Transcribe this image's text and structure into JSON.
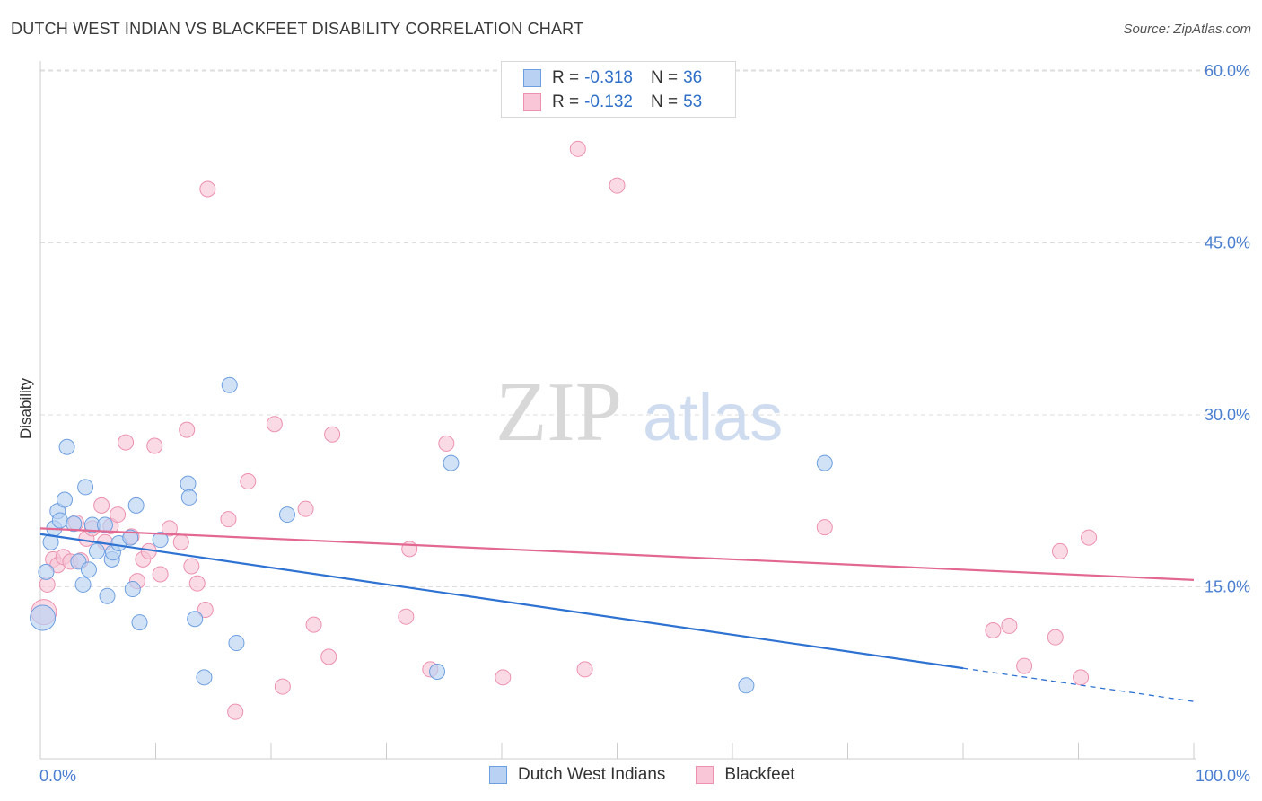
{
  "header": {
    "title": "DUTCH WEST INDIAN VS BLACKFEET DISABILITY CORRELATION CHART",
    "source": "Source: ZipAtlas.com"
  },
  "watermark": {
    "zip": "ZIP",
    "atlas": "atlas"
  },
  "legend": {
    "rows": [
      {
        "r_label": "R =",
        "r_value": "-0.318",
        "n_label": "N =",
        "n_value": "36"
      },
      {
        "r_label": "R =",
        "r_value": "-0.132",
        "n_label": "N =",
        "n_value": "53"
      }
    ]
  },
  "colors": {
    "blue_fill": "#b9d2f3",
    "blue_stroke": "#6d9fe0",
    "blue_line": "#2e72d2",
    "pink_fill": "#f8c6d6",
    "pink_stroke": "#ec91b0",
    "pink_line": "#e26891",
    "grid": "#dddddd",
    "tick_text": "#4a7fd0"
  },
  "chart_data": {
    "type": "scatter",
    "title": "DUTCH WEST INDIAN VS BLACKFEET DISABILITY CORRELATION CHART",
    "xlabel": "",
    "ylabel": "Disability",
    "xlim": [
      0,
      100
    ],
    "ylim": [
      0,
      61.5
    ],
    "x_tick_labels": [
      "0.0%",
      "100.0%"
    ],
    "y_ticks": [
      15,
      30,
      45,
      60
    ],
    "y_tick_labels": [
      "15.0%",
      "30.0%",
      "45.0%",
      "60.0%"
    ],
    "grid": true,
    "series": [
      {
        "name": "Dutch West Indians",
        "r": -0.318,
        "n": 36,
        "trend": {
          "x0": 0,
          "y0": 19.6,
          "x1": 80,
          "y1": 7.9,
          "dashed_to_x": 100,
          "dashed_to_y": 5.0
        },
        "points": [
          [
            0.2,
            12.3
          ],
          [
            0.5,
            16.3
          ],
          [
            0.9,
            18.9
          ],
          [
            1.2,
            20.1
          ],
          [
            1.5,
            21.6
          ],
          [
            1.7,
            20.8
          ],
          [
            2.1,
            22.6
          ],
          [
            2.3,
            27.2
          ],
          [
            2.9,
            20.5
          ],
          [
            3.3,
            17.2
          ],
          [
            3.7,
            15.2
          ],
          [
            3.9,
            23.7
          ],
          [
            4.2,
            16.5
          ],
          [
            4.5,
            20.4
          ],
          [
            4.9,
            18.1
          ],
          [
            5.6,
            20.4
          ],
          [
            5.8,
            14.2
          ],
          [
            6.2,
            17.4
          ],
          [
            6.3,
            18.0
          ],
          [
            6.8,
            18.8
          ],
          [
            7.8,
            19.3
          ],
          [
            8.0,
            14.8
          ],
          [
            8.3,
            22.1
          ],
          [
            8.6,
            11.9
          ],
          [
            10.4,
            19.1
          ],
          [
            12.8,
            24.0
          ],
          [
            12.9,
            22.8
          ],
          [
            13.4,
            12.2
          ],
          [
            14.2,
            7.1
          ],
          [
            16.4,
            32.6
          ],
          [
            17.0,
            10.1
          ],
          [
            21.4,
            21.3
          ],
          [
            34.4,
            7.6
          ],
          [
            35.6,
            25.8
          ],
          [
            61.2,
            6.4
          ],
          [
            68.0,
            25.8
          ]
        ]
      },
      {
        "name": "Blackfeet",
        "r": -0.132,
        "n": 53,
        "trend": {
          "x0": 0,
          "y0": 20.1,
          "x1": 100,
          "y1": 15.6
        },
        "points": [
          [
            0.3,
            12.8
          ],
          [
            0.6,
            15.2
          ],
          [
            1.1,
            17.4
          ],
          [
            1.5,
            16.9
          ],
          [
            2.0,
            17.6
          ],
          [
            2.6,
            17.2
          ],
          [
            3.1,
            20.6
          ],
          [
            3.5,
            17.3
          ],
          [
            4.0,
            19.2
          ],
          [
            4.5,
            20.1
          ],
          [
            5.3,
            22.1
          ],
          [
            5.6,
            18.9
          ],
          [
            6.1,
            20.3
          ],
          [
            6.7,
            21.3
          ],
          [
            7.4,
            27.6
          ],
          [
            7.9,
            19.4
          ],
          [
            8.4,
            15.5
          ],
          [
            8.9,
            17.4
          ],
          [
            9.4,
            18.1
          ],
          [
            9.9,
            27.3
          ],
          [
            10.4,
            16.1
          ],
          [
            11.2,
            20.1
          ],
          [
            12.2,
            18.9
          ],
          [
            12.7,
            28.7
          ],
          [
            13.1,
            16.8
          ],
          [
            13.6,
            15.3
          ],
          [
            14.3,
            13.0
          ],
          [
            14.5,
            49.7
          ],
          [
            16.3,
            20.9
          ],
          [
            16.9,
            4.1
          ],
          [
            18.0,
            24.2
          ],
          [
            20.3,
            29.2
          ],
          [
            21.0,
            6.3
          ],
          [
            23.0,
            21.8
          ],
          [
            23.7,
            11.7
          ],
          [
            25.0,
            8.9
          ],
          [
            25.3,
            28.3
          ],
          [
            31.7,
            12.4
          ],
          [
            32.0,
            18.3
          ],
          [
            33.8,
            7.8
          ],
          [
            35.2,
            27.5
          ],
          [
            40.1,
            7.1
          ],
          [
            46.6,
            53.2
          ],
          [
            47.2,
            7.8
          ],
          [
            50.0,
            50.0
          ],
          [
            68.0,
            20.2
          ],
          [
            82.6,
            11.2
          ],
          [
            84.0,
            11.6
          ],
          [
            85.3,
            8.1
          ],
          [
            88.0,
            10.6
          ],
          [
            88.4,
            18.1
          ],
          [
            90.2,
            7.1
          ],
          [
            90.9,
            19.3
          ]
        ]
      }
    ]
  }
}
